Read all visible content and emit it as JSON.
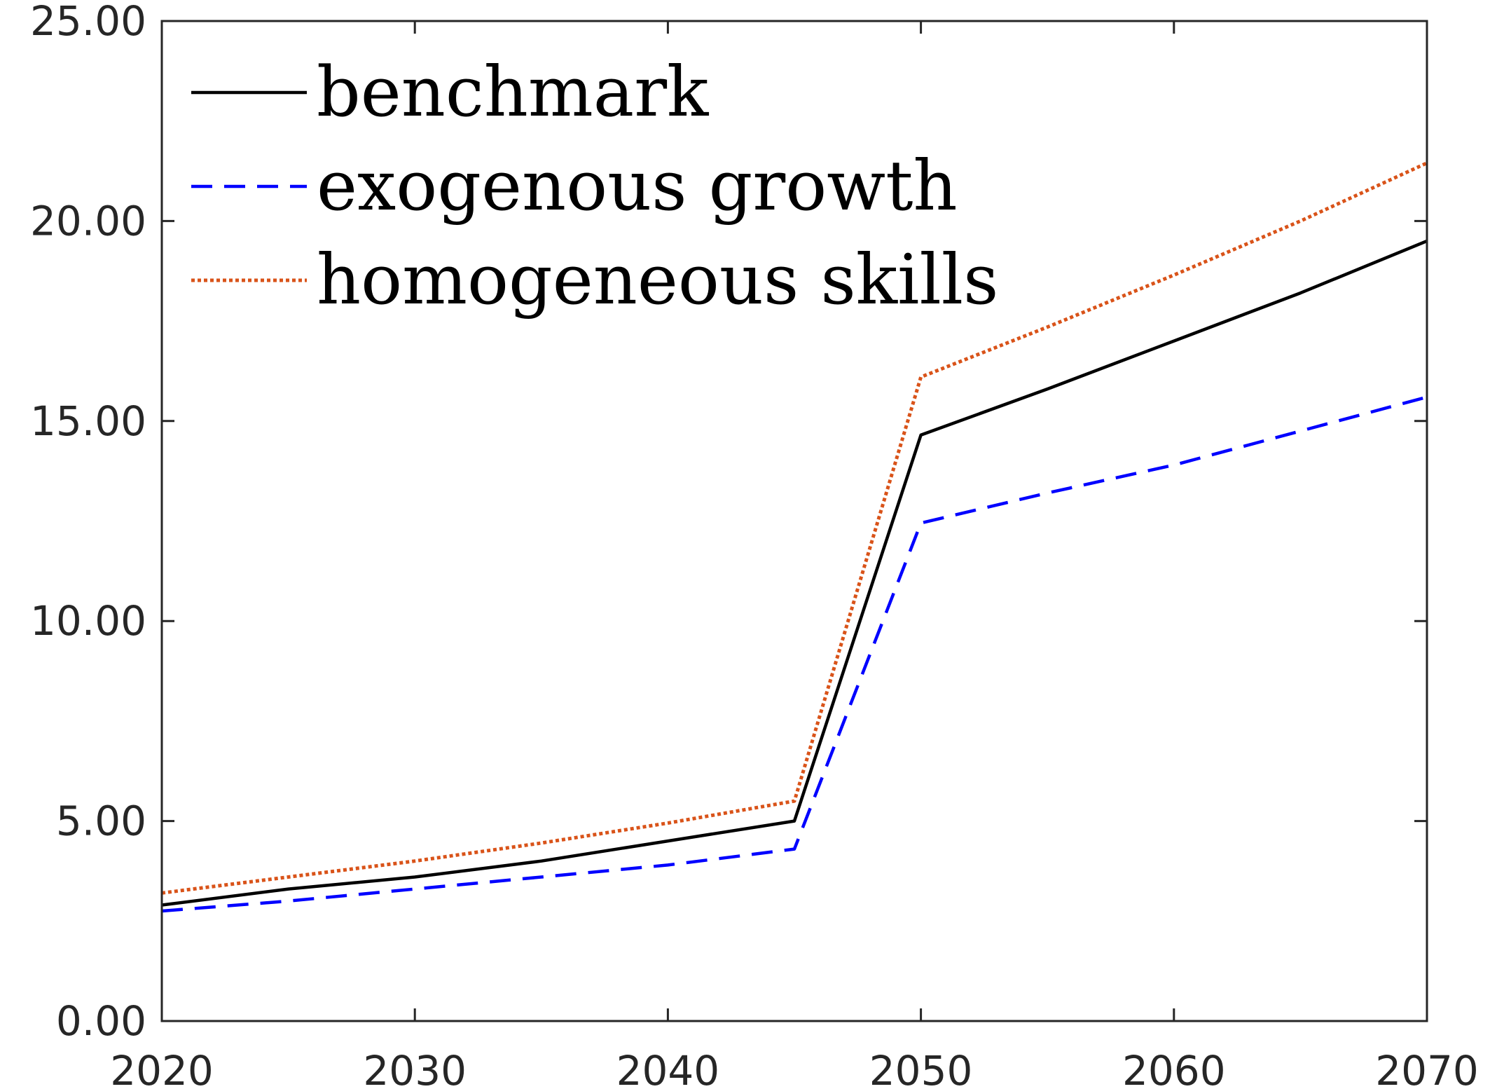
{
  "chart_data": {
    "type": "line",
    "title": "",
    "xlabel": "",
    "ylabel": "",
    "xlim": [
      2020,
      2070
    ],
    "ylim": [
      0,
      25
    ],
    "xticks": [
      2020,
      2030,
      2040,
      2050,
      2060,
      2070
    ],
    "yticks": [
      0,
      5,
      10,
      15,
      20,
      25
    ],
    "xtick_labels": [
      "2020",
      "2030",
      "2040",
      "2050",
      "2060",
      "2070"
    ],
    "ytick_labels": [
      "0.00",
      "5.00",
      "10.00",
      "15.00",
      "20.00",
      "25.00"
    ],
    "grid": false,
    "legend_position": "top-left",
    "x": [
      2020,
      2025,
      2030,
      2035,
      2040,
      2045,
      2050,
      2055,
      2060,
      2065,
      2070
    ],
    "series": [
      {
        "name": "benchmark",
        "color": "#000000",
        "style": "solid",
        "values": [
          2.9,
          3.3,
          3.6,
          4.0,
          4.5,
          5.0,
          14.65,
          15.8,
          17.0,
          18.2,
          19.5
        ]
      },
      {
        "name": "exogenous growth",
        "color": "#0000ff",
        "style": "dashed",
        "values": [
          2.75,
          3.0,
          3.3,
          3.6,
          3.9,
          4.3,
          12.45,
          13.2,
          13.9,
          14.75,
          15.6
        ]
      },
      {
        "name": "homogeneous skills",
        "color": "#d95319",
        "style": "dotted",
        "values": [
          3.2,
          3.6,
          4.0,
          4.45,
          4.95,
          5.5,
          16.1,
          17.35,
          18.65,
          20.0,
          21.45
        ]
      }
    ]
  }
}
